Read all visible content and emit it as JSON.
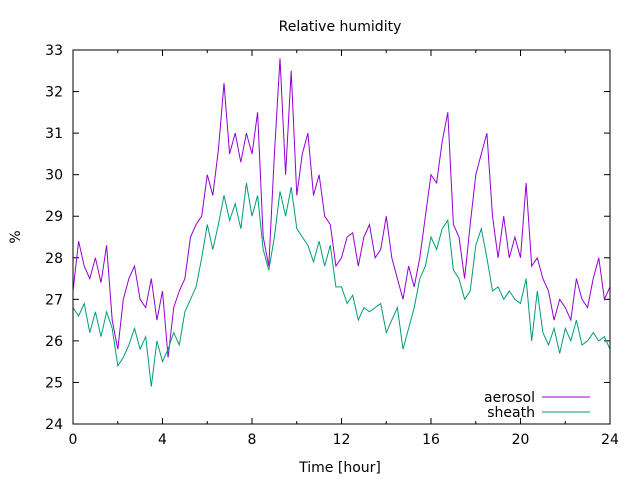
{
  "chart_data": {
    "type": "line",
    "title": "Relative humidity",
    "xlabel": "Time [hour]",
    "ylabel": "%",
    "xlim": [
      0,
      24
    ],
    "ylim": [
      24,
      33
    ],
    "xticks": [
      0,
      4,
      8,
      12,
      16,
      20,
      24
    ],
    "yticks": [
      24,
      25,
      26,
      27,
      28,
      29,
      30,
      31,
      32,
      33
    ],
    "grid": false,
    "legend_position": "bottom-right",
    "x_step": 0.25,
    "series": [
      {
        "name": "aerosol",
        "color": "#9400d3",
        "values": [
          27.2,
          28.4,
          27.8,
          27.5,
          28.0,
          27.4,
          28.3,
          26.5,
          25.8,
          27.0,
          27.5,
          27.8,
          27.0,
          26.8,
          27.5,
          26.5,
          27.2,
          25.6,
          26.8,
          27.2,
          27.5,
          28.5,
          28.8,
          29.0,
          30.0,
          29.5,
          30.6,
          32.2,
          30.5,
          31.0,
          30.3,
          31.0,
          30.5,
          31.5,
          28.5,
          27.8,
          30.5,
          32.8,
          30.0,
          32.5,
          29.5,
          30.5,
          31.0,
          29.5,
          30.0,
          29.0,
          28.8,
          27.8,
          28.0,
          28.5,
          28.6,
          27.8,
          28.5,
          28.8,
          28.0,
          28.2,
          29.0,
          28.0,
          27.5,
          27.0,
          27.8,
          27.3,
          28.0,
          29.0,
          30.0,
          29.8,
          30.8,
          31.5,
          28.8,
          28.5,
          27.5,
          28.8,
          30.0,
          30.5,
          31.0,
          29.0,
          28.0,
          29.0,
          28.0,
          28.5,
          28.0,
          29.8,
          27.8,
          28.0,
          27.5,
          27.2,
          26.5,
          27.0,
          26.8,
          26.5,
          27.5,
          27.0,
          26.8,
          27.5,
          28.0,
          27.0,
          27.3
        ]
      },
      {
        "name": "sheath",
        "color": "#009e73",
        "values": [
          26.8,
          26.6,
          26.9,
          26.2,
          26.7,
          26.1,
          26.7,
          26.3,
          25.4,
          25.6,
          25.9,
          26.3,
          25.8,
          26.1,
          24.9,
          26.0,
          25.5,
          25.8,
          26.2,
          25.9,
          26.7,
          27.0,
          27.3,
          28.0,
          28.8,
          28.2,
          28.8,
          29.5,
          28.9,
          29.3,
          28.7,
          29.8,
          29.0,
          29.5,
          28.2,
          27.7,
          28.5,
          29.6,
          29.0,
          29.7,
          28.7,
          28.5,
          28.3,
          27.9,
          28.4,
          27.8,
          28.3,
          27.3,
          27.3,
          26.9,
          27.1,
          26.5,
          26.8,
          26.7,
          26.8,
          26.9,
          26.2,
          26.5,
          26.8,
          25.8,
          26.3,
          26.8,
          27.5,
          27.8,
          28.5,
          28.2,
          28.7,
          28.9,
          27.7,
          27.5,
          27.0,
          27.2,
          28.3,
          28.7,
          28.0,
          27.2,
          27.3,
          27.0,
          27.2,
          27.0,
          26.9,
          27.5,
          26.0,
          27.2,
          26.2,
          25.9,
          26.3,
          25.7,
          26.3,
          26.0,
          26.5,
          25.9,
          26.0,
          26.2,
          26.0,
          26.1,
          25.8
        ]
      }
    ]
  }
}
